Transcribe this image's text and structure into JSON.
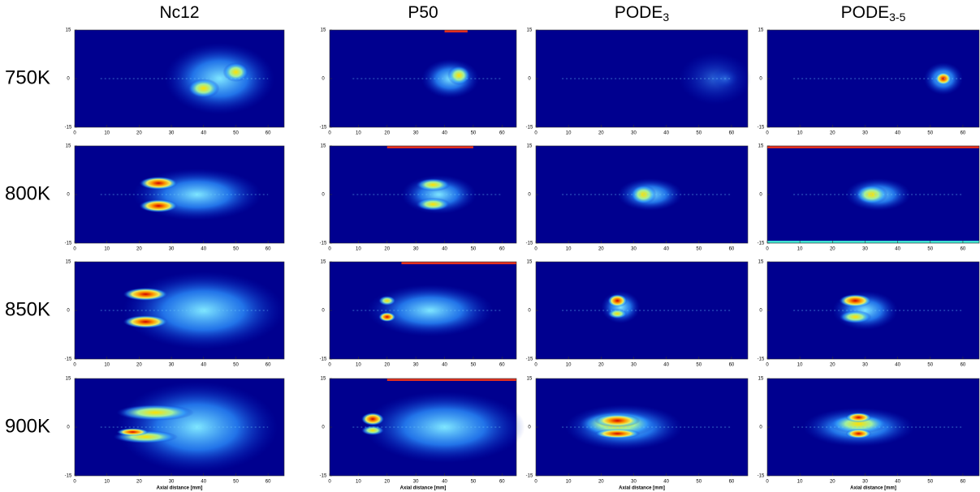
{
  "columns": [
    {
      "text": "Nc12"
    },
    {
      "text": "P50"
    },
    {
      "text": "PODE",
      "sub": "3"
    },
    {
      "text": "PODE",
      "sub": "3-5"
    }
  ],
  "rows": [
    "750K",
    "800K",
    "850K",
    "900K"
  ],
  "xlabel": "Axial distance [mm]",
  "xlim": [
    0,
    65
  ],
  "ylim": [
    -15,
    15
  ],
  "xticks": [
    0,
    10,
    20,
    30,
    40,
    50,
    60
  ],
  "yticks": [
    -15,
    0,
    15
  ]
}
